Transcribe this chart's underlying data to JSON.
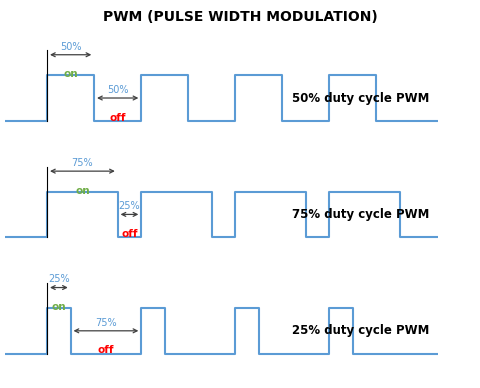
{
  "title": "PWM (PULSE WIDTH MODULATION)",
  "title_fontsize": 10,
  "title_fontweight": "bold",
  "bg_color": "#ffffff",
  "signal_color": "#5b9bd5",
  "signal_lw": 1.5,
  "arrow_color": "#404040",
  "panels": [
    {
      "duty": 50,
      "label": "50% duty cycle PWM",
      "on_pct": "50%",
      "off_pct": "50%",
      "on_color": "#70ad47",
      "off_color": "#ff0000",
      "pct_color": "#5b9bd5",
      "on_label": "on",
      "off_label": "off",
      "on_arrow_above": true,
      "off_arrow_mid": true
    },
    {
      "duty": 75,
      "label": "75% duty cycle PWM",
      "on_pct": "75%",
      "off_pct": "25%",
      "on_color": "#70ad47",
      "off_color": "#ff0000",
      "pct_color": "#5b9bd5",
      "on_label": "on",
      "off_label": "off",
      "on_arrow_above": true,
      "off_arrow_mid": true
    },
    {
      "duty": 25,
      "label": "25% duty cycle PWM",
      "on_pct": "25%",
      "off_pct": "75%",
      "on_color": "#70ad47",
      "off_color": "#ff0000",
      "pct_color": "#5b9bd5",
      "on_label": "on",
      "off_label": "off",
      "on_arrow_above": true,
      "off_arrow_mid": true
    }
  ],
  "period": 2.0,
  "n_periods": 4,
  "xlim": [
    0,
    10
  ],
  "ylim_low": -0.5,
  "ylim_high": 1.8,
  "signal_low": 0.0,
  "signal_high": 1.0,
  "start_x": 0.9
}
